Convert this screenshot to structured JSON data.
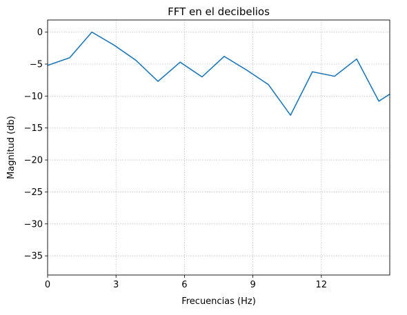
{
  "chart_data": {
    "type": "line",
    "title": "FFT en el decibelios",
    "xlabel": "Frecuencias (Hz)",
    "ylabel": "Magnitud (db)",
    "xlim": [
      0,
      15
    ],
    "ylim": [
      -38,
      1.9
    ],
    "xticks": [
      0,
      3,
      6,
      9,
      12
    ],
    "xtick_labels": [
      "0",
      "3",
      "6",
      "9",
      "12"
    ],
    "yticks": [
      0,
      -5,
      -10,
      -15,
      -20,
      -25,
      -30,
      -35
    ],
    "ytick_labels": [
      "0",
      "−5",
      "−10",
      "−15",
      "−20",
      "−25",
      "−30",
      "−35"
    ],
    "grid": true,
    "series": [
      {
        "color": "#1f77b4",
        "x": [
          0,
          0.97,
          1.94,
          2.9,
          3.87,
          4.84,
          5.81,
          6.77,
          7.74,
          8.71,
          9.68,
          10.65,
          11.61,
          12.58,
          13.55,
          14.52,
          15.0
        ],
        "y": [
          -5.2,
          -4.0,
          0.0,
          -2.0,
          -4.4,
          -7.7,
          -4.7,
          -7.0,
          -3.8,
          -5.9,
          -8.2,
          -13.0,
          -6.2,
          -6.9,
          -4.2,
          -10.8,
          -9.7
        ]
      }
    ]
  }
}
